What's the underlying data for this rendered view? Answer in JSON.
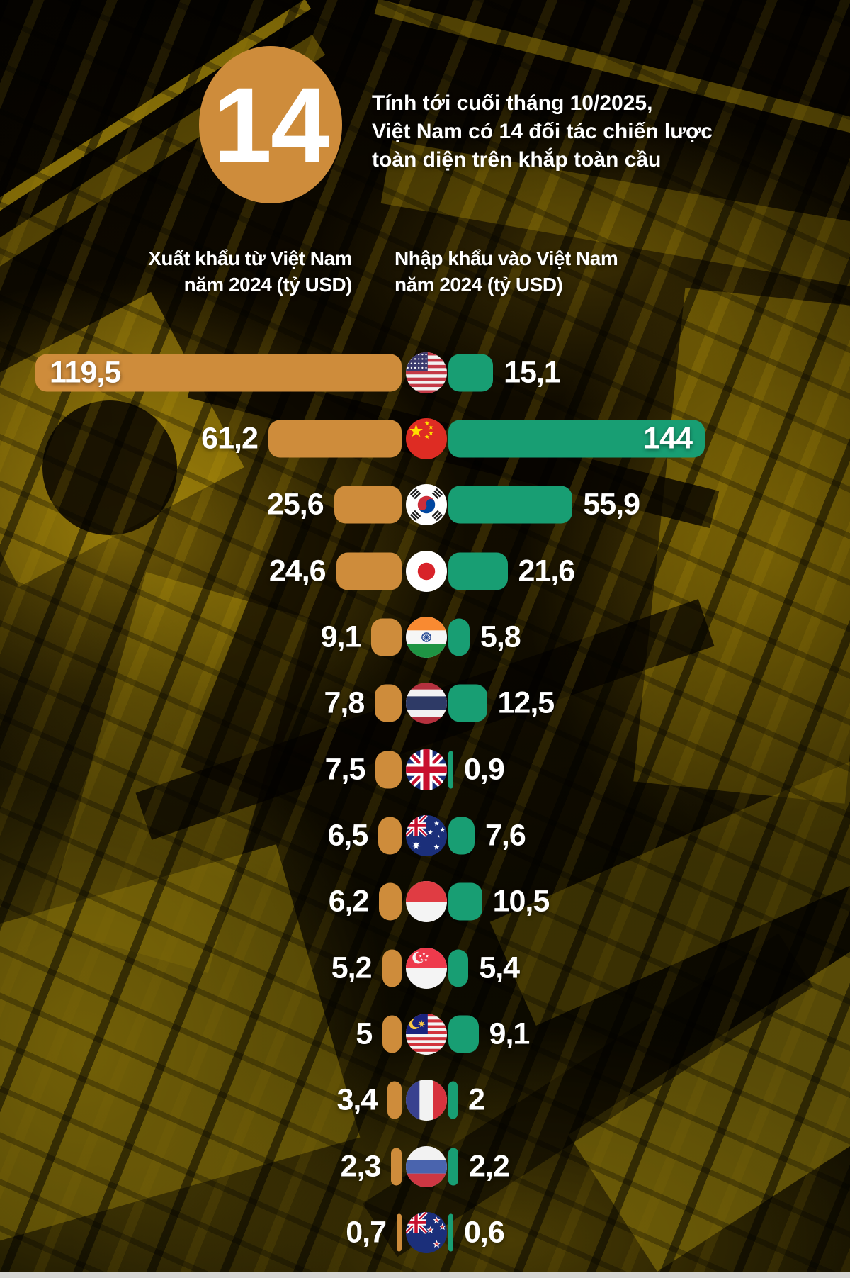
{
  "colors": {
    "orange": "#CE8C3B",
    "green": "#189E73",
    "text": "#FFFFFF",
    "background_dark": "#0C0800",
    "bottom_strip": "#D8D8D6"
  },
  "badge": {
    "number": "14",
    "description_lines": [
      "Tính tới cuối tháng 10/2025,",
      "Việt Nam có 14 đối tác chiến lược",
      "toàn diện trên khắp toàn cầu"
    ]
  },
  "headers": {
    "export_line1": "Xuất khẩu từ Việt Nam",
    "export_line2": "năm 2024 (tỷ USD)",
    "import_line1": "Nhập khẩu vào Việt Nam",
    "import_line2": "năm 2024 (tỷ USD)"
  },
  "chart_data": {
    "type": "bar",
    "orientation": "diverging-horizontal",
    "unit": "tỷ USD",
    "legend_position": "column-headers-top",
    "series": [
      {
        "name": "Xuất khẩu từ Việt Nam năm 2024 (tỷ USD)",
        "color": "#CE8C3B",
        "side": "left"
      },
      {
        "name": "Nhập khẩu vào Việt Nam năm 2024 (tỷ USD)",
        "color": "#189E73",
        "side": "right"
      }
    ],
    "rows": [
      {
        "country": "United States",
        "flag": "us",
        "flag_icon": "us-flag-icon",
        "export": 119.5,
        "export_label": "119,5",
        "import": 15.1,
        "import_label": "15,1",
        "export_label_inside": true
      },
      {
        "country": "China",
        "flag": "cn",
        "flag_icon": "china-flag-icon",
        "export": 61.2,
        "export_label": "61,2",
        "import": 144,
        "import_label": "144",
        "import_label_inside": true
      },
      {
        "country": "South Korea",
        "flag": "kr",
        "flag_icon": "south-korea-flag-icon",
        "export": 25.6,
        "export_label": "25,6",
        "import": 55.9,
        "import_label": "55,9"
      },
      {
        "country": "Japan",
        "flag": "jp",
        "flag_icon": "japan-flag-icon",
        "export": 24.6,
        "export_label": "24,6",
        "import": 21.6,
        "import_label": "21,6"
      },
      {
        "country": "India",
        "flag": "in",
        "flag_icon": "india-flag-icon",
        "export": 9.1,
        "export_label": "9,1",
        "import": 5.8,
        "import_label": "5,8"
      },
      {
        "country": "Thailand",
        "flag": "th",
        "flag_icon": "thailand-flag-icon",
        "export": 7.8,
        "export_label": "7,8",
        "import": 12.5,
        "import_label": "12,5"
      },
      {
        "country": "United Kingdom",
        "flag": "gb",
        "flag_icon": "uk-flag-icon",
        "export": 7.5,
        "export_label": "7,5",
        "import": 0.9,
        "import_label": "0,9"
      },
      {
        "country": "Australia",
        "flag": "au",
        "flag_icon": "australia-flag-icon",
        "export": 6.5,
        "export_label": "6,5",
        "import": 7.6,
        "import_label": "7,6"
      },
      {
        "country": "Indonesia",
        "flag": "id",
        "flag_icon": "indonesia-flag-icon",
        "export": 6.2,
        "export_label": "6,2",
        "import": 10.5,
        "import_label": "10,5"
      },
      {
        "country": "Singapore",
        "flag": "sg",
        "flag_icon": "singapore-flag-icon",
        "export": 5.2,
        "export_label": "5,2",
        "import": 5.4,
        "import_label": "5,4"
      },
      {
        "country": "Malaysia",
        "flag": "my",
        "flag_icon": "malaysia-flag-icon",
        "export": 5,
        "export_label": "5",
        "import": 9.1,
        "import_label": "9,1"
      },
      {
        "country": "France",
        "flag": "fr",
        "flag_icon": "france-flag-icon",
        "export": 3.4,
        "export_label": "3,4",
        "import": 2,
        "import_label": "2"
      },
      {
        "country": "Russia",
        "flag": "ru",
        "flag_icon": "russia-flag-icon",
        "export": 2.3,
        "export_label": "2,3",
        "import": 2.2,
        "import_label": "2,2"
      },
      {
        "country": "New Zealand",
        "flag": "nz",
        "flag_icon": "new-zealand-flag-icon",
        "export": 0.7,
        "export_label": "0,7",
        "import": 0.6,
        "import_label": "0,6"
      }
    ]
  }
}
